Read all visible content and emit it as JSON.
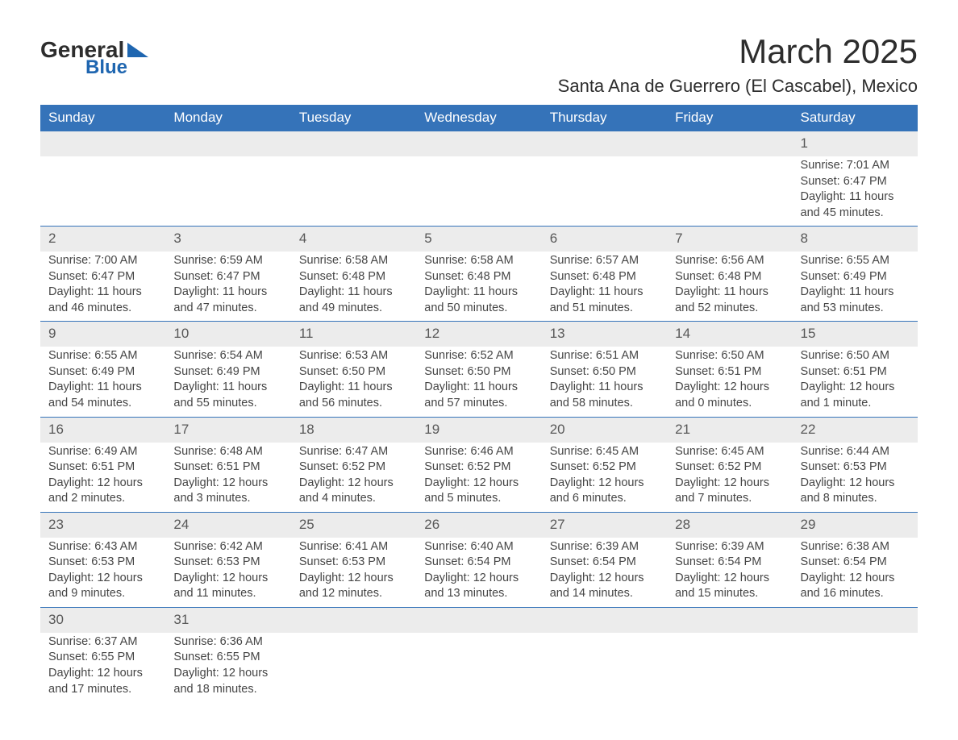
{
  "logo": {
    "general": "General",
    "blue": "Blue"
  },
  "title": "March 2025",
  "subtitle": "Santa Ana de Guerrero (El Cascabel), Mexico",
  "colors": {
    "header_bg": "#3573b9",
    "header_text": "#ffffff",
    "daynum_bg": "#ececec",
    "border": "#3573b9",
    "body_text": "#454545",
    "logo_accent": "#1f66b0"
  },
  "weekdays": [
    "Sunday",
    "Monday",
    "Tuesday",
    "Wednesday",
    "Thursday",
    "Friday",
    "Saturday"
  ],
  "weeks": [
    [
      null,
      null,
      null,
      null,
      null,
      null,
      {
        "day": "1",
        "sunrise": "Sunrise: 7:01 AM",
        "sunset": "Sunset: 6:47 PM",
        "daylight1": "Daylight: 11 hours",
        "daylight2": "and 45 minutes."
      }
    ],
    [
      {
        "day": "2",
        "sunrise": "Sunrise: 7:00 AM",
        "sunset": "Sunset: 6:47 PM",
        "daylight1": "Daylight: 11 hours",
        "daylight2": "and 46 minutes."
      },
      {
        "day": "3",
        "sunrise": "Sunrise: 6:59 AM",
        "sunset": "Sunset: 6:47 PM",
        "daylight1": "Daylight: 11 hours",
        "daylight2": "and 47 minutes."
      },
      {
        "day": "4",
        "sunrise": "Sunrise: 6:58 AM",
        "sunset": "Sunset: 6:48 PM",
        "daylight1": "Daylight: 11 hours",
        "daylight2": "and 49 minutes."
      },
      {
        "day": "5",
        "sunrise": "Sunrise: 6:58 AM",
        "sunset": "Sunset: 6:48 PM",
        "daylight1": "Daylight: 11 hours",
        "daylight2": "and 50 minutes."
      },
      {
        "day": "6",
        "sunrise": "Sunrise: 6:57 AM",
        "sunset": "Sunset: 6:48 PM",
        "daylight1": "Daylight: 11 hours",
        "daylight2": "and 51 minutes."
      },
      {
        "day": "7",
        "sunrise": "Sunrise: 6:56 AM",
        "sunset": "Sunset: 6:48 PM",
        "daylight1": "Daylight: 11 hours",
        "daylight2": "and 52 minutes."
      },
      {
        "day": "8",
        "sunrise": "Sunrise: 6:55 AM",
        "sunset": "Sunset: 6:49 PM",
        "daylight1": "Daylight: 11 hours",
        "daylight2": "and 53 minutes."
      }
    ],
    [
      {
        "day": "9",
        "sunrise": "Sunrise: 6:55 AM",
        "sunset": "Sunset: 6:49 PM",
        "daylight1": "Daylight: 11 hours",
        "daylight2": "and 54 minutes."
      },
      {
        "day": "10",
        "sunrise": "Sunrise: 6:54 AM",
        "sunset": "Sunset: 6:49 PM",
        "daylight1": "Daylight: 11 hours",
        "daylight2": "and 55 minutes."
      },
      {
        "day": "11",
        "sunrise": "Sunrise: 6:53 AM",
        "sunset": "Sunset: 6:50 PM",
        "daylight1": "Daylight: 11 hours",
        "daylight2": "and 56 minutes."
      },
      {
        "day": "12",
        "sunrise": "Sunrise: 6:52 AM",
        "sunset": "Sunset: 6:50 PM",
        "daylight1": "Daylight: 11 hours",
        "daylight2": "and 57 minutes."
      },
      {
        "day": "13",
        "sunrise": "Sunrise: 6:51 AM",
        "sunset": "Sunset: 6:50 PM",
        "daylight1": "Daylight: 11 hours",
        "daylight2": "and 58 minutes."
      },
      {
        "day": "14",
        "sunrise": "Sunrise: 6:50 AM",
        "sunset": "Sunset: 6:51 PM",
        "daylight1": "Daylight: 12 hours",
        "daylight2": "and 0 minutes."
      },
      {
        "day": "15",
        "sunrise": "Sunrise: 6:50 AM",
        "sunset": "Sunset: 6:51 PM",
        "daylight1": "Daylight: 12 hours",
        "daylight2": "and 1 minute."
      }
    ],
    [
      {
        "day": "16",
        "sunrise": "Sunrise: 6:49 AM",
        "sunset": "Sunset: 6:51 PM",
        "daylight1": "Daylight: 12 hours",
        "daylight2": "and 2 minutes."
      },
      {
        "day": "17",
        "sunrise": "Sunrise: 6:48 AM",
        "sunset": "Sunset: 6:51 PM",
        "daylight1": "Daylight: 12 hours",
        "daylight2": "and 3 minutes."
      },
      {
        "day": "18",
        "sunrise": "Sunrise: 6:47 AM",
        "sunset": "Sunset: 6:52 PM",
        "daylight1": "Daylight: 12 hours",
        "daylight2": "and 4 minutes."
      },
      {
        "day": "19",
        "sunrise": "Sunrise: 6:46 AM",
        "sunset": "Sunset: 6:52 PM",
        "daylight1": "Daylight: 12 hours",
        "daylight2": "and 5 minutes."
      },
      {
        "day": "20",
        "sunrise": "Sunrise: 6:45 AM",
        "sunset": "Sunset: 6:52 PM",
        "daylight1": "Daylight: 12 hours",
        "daylight2": "and 6 minutes."
      },
      {
        "day": "21",
        "sunrise": "Sunrise: 6:45 AM",
        "sunset": "Sunset: 6:52 PM",
        "daylight1": "Daylight: 12 hours",
        "daylight2": "and 7 minutes."
      },
      {
        "day": "22",
        "sunrise": "Sunrise: 6:44 AM",
        "sunset": "Sunset: 6:53 PM",
        "daylight1": "Daylight: 12 hours",
        "daylight2": "and 8 minutes."
      }
    ],
    [
      {
        "day": "23",
        "sunrise": "Sunrise: 6:43 AM",
        "sunset": "Sunset: 6:53 PM",
        "daylight1": "Daylight: 12 hours",
        "daylight2": "and 9 minutes."
      },
      {
        "day": "24",
        "sunrise": "Sunrise: 6:42 AM",
        "sunset": "Sunset: 6:53 PM",
        "daylight1": "Daylight: 12 hours",
        "daylight2": "and 11 minutes."
      },
      {
        "day": "25",
        "sunrise": "Sunrise: 6:41 AM",
        "sunset": "Sunset: 6:53 PM",
        "daylight1": "Daylight: 12 hours",
        "daylight2": "and 12 minutes."
      },
      {
        "day": "26",
        "sunrise": "Sunrise: 6:40 AM",
        "sunset": "Sunset: 6:54 PM",
        "daylight1": "Daylight: 12 hours",
        "daylight2": "and 13 minutes."
      },
      {
        "day": "27",
        "sunrise": "Sunrise: 6:39 AM",
        "sunset": "Sunset: 6:54 PM",
        "daylight1": "Daylight: 12 hours",
        "daylight2": "and 14 minutes."
      },
      {
        "day": "28",
        "sunrise": "Sunrise: 6:39 AM",
        "sunset": "Sunset: 6:54 PM",
        "daylight1": "Daylight: 12 hours",
        "daylight2": "and 15 minutes."
      },
      {
        "day": "29",
        "sunrise": "Sunrise: 6:38 AM",
        "sunset": "Sunset: 6:54 PM",
        "daylight1": "Daylight: 12 hours",
        "daylight2": "and 16 minutes."
      }
    ],
    [
      {
        "day": "30",
        "sunrise": "Sunrise: 6:37 AM",
        "sunset": "Sunset: 6:55 PM",
        "daylight1": "Daylight: 12 hours",
        "daylight2": "and 17 minutes."
      },
      {
        "day": "31",
        "sunrise": "Sunrise: 6:36 AM",
        "sunset": "Sunset: 6:55 PM",
        "daylight1": "Daylight: 12 hours",
        "daylight2": "and 18 minutes."
      },
      null,
      null,
      null,
      null,
      null
    ]
  ]
}
